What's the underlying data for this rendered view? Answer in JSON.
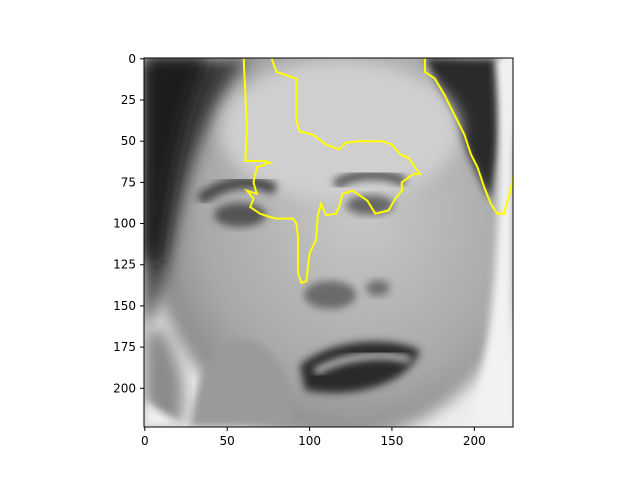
{
  "image": {
    "description": "grayscale close-up of a face with yellow segmentation contour overlay",
    "rows": 224,
    "cols": 224
  },
  "axes": {
    "x_ticks": [
      {
        "value": 0,
        "label": "0"
      },
      {
        "value": 50,
        "label": "50"
      },
      {
        "value": 100,
        "label": "100"
      },
      {
        "value": 150,
        "label": "150"
      },
      {
        "value": 200,
        "label": "200"
      }
    ],
    "y_ticks": [
      {
        "value": 0,
        "label": "0"
      },
      {
        "value": 25,
        "label": "25"
      },
      {
        "value": 50,
        "label": "50"
      },
      {
        "value": 75,
        "label": "75"
      },
      {
        "value": 100,
        "label": "100"
      },
      {
        "value": 125,
        "label": "125"
      },
      {
        "value": 150,
        "label": "150"
      },
      {
        "value": 175,
        "label": "175"
      },
      {
        "value": 200,
        "label": "200"
      }
    ],
    "xlim": [
      -0.5,
      223.5
    ],
    "ylim": [
      223.5,
      -0.5
    ]
  },
  "overlay": {
    "color": "#ffff00",
    "contours": [
      [
        [
          60,
          0
        ],
        [
          61,
          20
        ],
        [
          62,
          42
        ],
        [
          61,
          62
        ],
        [
          72,
          62
        ],
        [
          76,
          63
        ],
        [
          68,
          66
        ],
        [
          66,
          75
        ],
        [
          68,
          82
        ],
        [
          62,
          80
        ],
        [
          66,
          85
        ],
        [
          64,
          90
        ],
        [
          70,
          94
        ],
        [
          76,
          96
        ],
        [
          80,
          97
        ],
        [
          90,
          97
        ],
        [
          92,
          100
        ],
        [
          93,
          108
        ],
        [
          93,
          130
        ],
        [
          95,
          136
        ],
        [
          98,
          135
        ],
        [
          100,
          118
        ],
        [
          104,
          110
        ],
        [
          105,
          95
        ],
        [
          107,
          88
        ],
        [
          110,
          95
        ],
        [
          116,
          94
        ],
        [
          118,
          90
        ],
        [
          120,
          82
        ],
        [
          126,
          80
        ],
        [
          135,
          86
        ],
        [
          140,
          94
        ],
        [
          148,
          92
        ],
        [
          152,
          85
        ],
        [
          156,
          80
        ],
        [
          156,
          75
        ],
        [
          163,
          70
        ],
        [
          167,
          70
        ],
        [
          160,
          60
        ],
        [
          155,
          58
        ],
        [
          150,
          52
        ],
        [
          144,
          50
        ],
        [
          130,
          50
        ],
        [
          122,
          51
        ],
        [
          118,
          55
        ],
        [
          110,
          52
        ],
        [
          102,
          46
        ],
        [
          94,
          44
        ],
        [
          92,
          38
        ],
        [
          92,
          24
        ],
        [
          92,
          12
        ],
        [
          80,
          8
        ],
        [
          77,
          0
        ]
      ],
      [
        [
          170,
          0
        ],
        [
          170,
          8
        ],
        [
          176,
          12
        ],
        [
          182,
          22
        ],
        [
          188,
          34
        ],
        [
          194,
          46
        ],
        [
          198,
          58
        ],
        [
          202,
          66
        ],
        [
          206,
          78
        ],
        [
          210,
          88
        ],
        [
          214,
          94
        ],
        [
          218,
          94
        ],
        [
          222,
          80
        ],
        [
          224,
          70
        ],
        [
          226,
          58
        ],
        [
          232,
          52
        ],
        [
          240,
          52
        ]
      ]
    ]
  },
  "colors": {
    "spine": "#000000",
    "overlay": "#ffff00"
  }
}
